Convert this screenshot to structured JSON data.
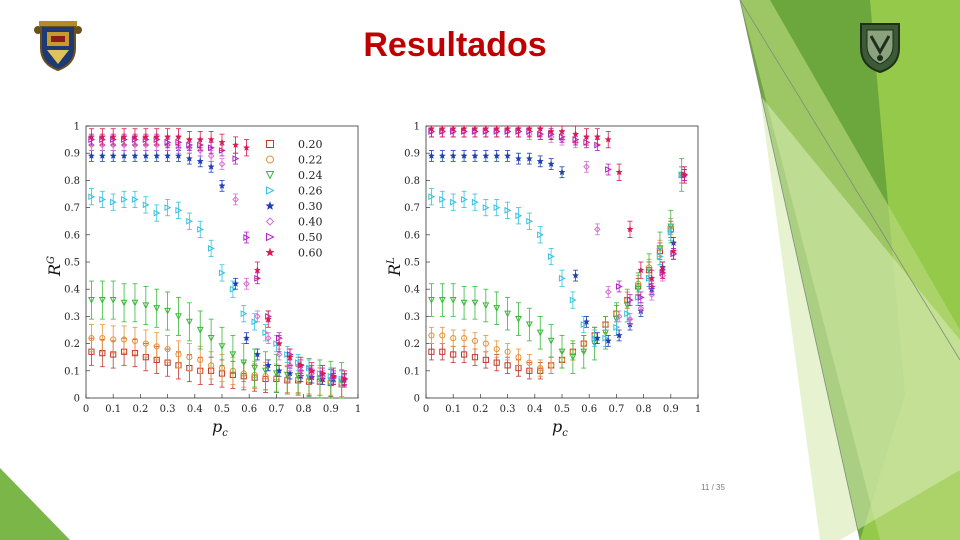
{
  "slide": {
    "title": "Resultados",
    "page_number": "11 / 35",
    "accent_color": "#7ab648",
    "title_color": "#c00000",
    "left_logo_icon": "university-crest-icon",
    "right_logo_icon": "unam-crest-icon"
  },
  "chart_data": [
    {
      "type": "scatter",
      "ylabel": "R",
      "ylabel_sup": "G",
      "xlabel": "p",
      "xlabel_sub": "c",
      "xlim": [
        0,
        1
      ],
      "ylim": [
        0,
        1
      ],
      "xticks": [
        "0",
        "0.1",
        "0.2",
        "0.3",
        "0.4",
        "0.5",
        "0.6",
        "0.7",
        "0.8",
        "0.9",
        "1"
      ],
      "yticks": [
        "0",
        "0.1",
        "0.2",
        "0.3",
        "0.4",
        "0.5",
        "0.6",
        "0.7",
        "0.8",
        "0.9",
        "1"
      ],
      "legend_position": "top-right",
      "series": [
        {
          "name": "0.20",
          "color": "#c0392b",
          "marker": "square",
          "error": 0.05,
          "x": [
            0.02,
            0.06,
            0.1,
            0.14,
            0.18,
            0.22,
            0.26,
            0.3,
            0.34,
            0.38,
            0.42,
            0.46,
            0.5,
            0.54,
            0.58,
            0.62,
            0.66,
            0.7,
            0.74,
            0.78,
            0.82,
            0.86,
            0.9,
            0.94
          ],
          "y": [
            0.17,
            0.165,
            0.16,
            0.17,
            0.165,
            0.15,
            0.14,
            0.13,
            0.12,
            0.11,
            0.1,
            0.1,
            0.09,
            0.085,
            0.08,
            0.075,
            0.07,
            0.07,
            0.065,
            0.065,
            0.06,
            0.06,
            0.055,
            0.05
          ]
        },
        {
          "name": "0.22",
          "color": "#e69138",
          "marker": "circle",
          "error": 0.05,
          "x": [
            0.02,
            0.06,
            0.1,
            0.14,
            0.18,
            0.22,
            0.26,
            0.3,
            0.34,
            0.38,
            0.42,
            0.46,
            0.5,
            0.54,
            0.58,
            0.62,
            0.66,
            0.7,
            0.74,
            0.78,
            0.82,
            0.86,
            0.9,
            0.94
          ],
          "y": [
            0.22,
            0.22,
            0.215,
            0.215,
            0.21,
            0.2,
            0.19,
            0.18,
            0.16,
            0.15,
            0.14,
            0.12,
            0.11,
            0.1,
            0.09,
            0.085,
            0.08,
            0.075,
            0.07,
            0.07,
            0.065,
            0.06,
            0.06,
            0.055
          ]
        },
        {
          "name": "0.24",
          "color": "#38b83a",
          "marker": "triangle-down",
          "error": 0.07,
          "x": [
            0.02,
            0.06,
            0.1,
            0.14,
            0.18,
            0.22,
            0.26,
            0.3,
            0.34,
            0.38,
            0.42,
            0.46,
            0.5,
            0.54,
            0.58,
            0.62,
            0.66,
            0.7,
            0.74,
            0.78,
            0.82,
            0.86,
            0.9,
            0.94
          ],
          "y": [
            0.36,
            0.36,
            0.36,
            0.35,
            0.35,
            0.34,
            0.33,
            0.32,
            0.3,
            0.28,
            0.25,
            0.22,
            0.19,
            0.16,
            0.13,
            0.11,
            0.1,
            0.09,
            0.085,
            0.08,
            0.075,
            0.07,
            0.065,
            0.06
          ]
        },
        {
          "name": "0.26",
          "color": "#35c2e0",
          "marker": "triangle-right",
          "error": 0.03,
          "x": [
            0.02,
            0.06,
            0.1,
            0.14,
            0.18,
            0.22,
            0.26,
            0.3,
            0.34,
            0.38,
            0.42,
            0.46,
            0.5,
            0.54,
            0.58,
            0.62,
            0.66,
            0.7,
            0.74,
            0.78,
            0.82,
            0.86,
            0.9,
            0.94
          ],
          "y": [
            0.74,
            0.73,
            0.72,
            0.73,
            0.73,
            0.71,
            0.68,
            0.7,
            0.69,
            0.65,
            0.62,
            0.55,
            0.46,
            0.4,
            0.31,
            0.28,
            0.24,
            0.2,
            0.16,
            0.13,
            0.11,
            0.09,
            0.08,
            0.07
          ]
        },
        {
          "name": "0.30",
          "color": "#1f3fb5",
          "marker": "star",
          "error": 0.02,
          "x": [
            0.02,
            0.06,
            0.1,
            0.14,
            0.18,
            0.22,
            0.26,
            0.3,
            0.34,
            0.38,
            0.42,
            0.46,
            0.5,
            0.55,
            0.59,
            0.63,
            0.67,
            0.71,
            0.75,
            0.79,
            0.83,
            0.87,
            0.91,
            0.95
          ],
          "y": [
            0.89,
            0.89,
            0.89,
            0.89,
            0.89,
            0.89,
            0.89,
            0.89,
            0.89,
            0.88,
            0.87,
            0.85,
            0.78,
            0.42,
            0.22,
            0.16,
            0.12,
            0.1,
            0.09,
            0.08,
            0.075,
            0.07,
            0.07,
            0.065
          ]
        },
        {
          "name": "0.40",
          "color": "#d66fd1",
          "marker": "diamond",
          "error": 0.02,
          "x": [
            0.02,
            0.06,
            0.1,
            0.14,
            0.18,
            0.22,
            0.26,
            0.3,
            0.34,
            0.38,
            0.42,
            0.46,
            0.5,
            0.55,
            0.59,
            0.63,
            0.67,
            0.71,
            0.75,
            0.79,
            0.83,
            0.87,
            0.91,
            0.95
          ],
          "y": [
            0.93,
            0.93,
            0.93,
            0.93,
            0.93,
            0.93,
            0.93,
            0.93,
            0.92,
            0.92,
            0.91,
            0.89,
            0.86,
            0.73,
            0.42,
            0.3,
            0.22,
            0.16,
            0.12,
            0.1,
            0.09,
            0.08,
            0.075,
            0.07
          ]
        },
        {
          "name": "0.50",
          "color": "#b11ec9",
          "marker": "triangle-right",
          "error": 0.02,
          "x": [
            0.02,
            0.06,
            0.1,
            0.14,
            0.18,
            0.22,
            0.26,
            0.3,
            0.34,
            0.38,
            0.42,
            0.46,
            0.5,
            0.55,
            0.59,
            0.63,
            0.67,
            0.71,
            0.75,
            0.79,
            0.83,
            0.87,
            0.91,
            0.95
          ],
          "y": [
            0.95,
            0.95,
            0.95,
            0.95,
            0.95,
            0.95,
            0.95,
            0.94,
            0.94,
            0.93,
            0.93,
            0.92,
            0.91,
            0.88,
            0.59,
            0.44,
            0.3,
            0.22,
            0.16,
            0.12,
            0.1,
            0.09,
            0.08,
            0.07
          ]
        },
        {
          "name": "0.60",
          "color": "#d81b50",
          "marker": "star",
          "error": 0.03,
          "x": [
            0.02,
            0.06,
            0.1,
            0.14,
            0.18,
            0.22,
            0.26,
            0.3,
            0.34,
            0.38,
            0.42,
            0.46,
            0.5,
            0.55,
            0.59,
            0.63,
            0.67,
            0.71,
            0.75,
            0.79,
            0.83,
            0.87,
            0.91,
            0.95
          ],
          "y": [
            0.96,
            0.96,
            0.96,
            0.96,
            0.96,
            0.96,
            0.96,
            0.96,
            0.96,
            0.95,
            0.95,
            0.95,
            0.94,
            0.93,
            0.92,
            0.47,
            0.29,
            0.2,
            0.15,
            0.12,
            0.1,
            0.09,
            0.08,
            0.07
          ]
        }
      ]
    },
    {
      "type": "scatter",
      "ylabel": "R",
      "ylabel_sup": "L",
      "xlabel": "p",
      "xlabel_sub": "c",
      "xlim": [
        0,
        1
      ],
      "ylim": [
        0,
        1
      ],
      "xticks": [
        "0",
        "0.1",
        "0.2",
        "0.3",
        "0.4",
        "0.5",
        "0.6",
        "0.7",
        "0.8",
        "0.9",
        "1"
      ],
      "yticks": [
        "0",
        "0.1",
        "0.2",
        "0.3",
        "0.4",
        "0.5",
        "0.6",
        "0.7",
        "0.8",
        "0.9",
        "1"
      ],
      "series": [
        {
          "name": "0.20",
          "color": "#c0392b",
          "marker": "square",
          "error": 0.03,
          "x": [
            0.02,
            0.06,
            0.1,
            0.14,
            0.18,
            0.22,
            0.26,
            0.3,
            0.34,
            0.38,
            0.42,
            0.46,
            0.5,
            0.54,
            0.58,
            0.62,
            0.66,
            0.7,
            0.74,
            0.78,
            0.82,
            0.86,
            0.9,
            0.94
          ],
          "y": [
            0.17,
            0.17,
            0.16,
            0.16,
            0.15,
            0.14,
            0.13,
            0.12,
            0.11,
            0.1,
            0.1,
            0.12,
            0.14,
            0.17,
            0.2,
            0.23,
            0.27,
            0.31,
            0.36,
            0.41,
            0.47,
            0.54,
            0.62,
            0.82
          ]
        },
        {
          "name": "0.22",
          "color": "#e69138",
          "marker": "circle",
          "error": 0.03,
          "x": [
            0.02,
            0.06,
            0.1,
            0.14,
            0.18,
            0.22,
            0.26,
            0.3,
            0.34,
            0.38,
            0.42,
            0.46,
            0.5,
            0.54,
            0.58,
            0.62,
            0.66,
            0.7,
            0.74,
            0.78,
            0.82,
            0.86,
            0.9,
            0.94
          ],
          "y": [
            0.23,
            0.23,
            0.22,
            0.22,
            0.21,
            0.2,
            0.18,
            0.17,
            0.15,
            0.13,
            0.11,
            0.12,
            0.14,
            0.17,
            0.2,
            0.23,
            0.27,
            0.31,
            0.36,
            0.42,
            0.48,
            0.55,
            0.63,
            0.82
          ]
        },
        {
          "name": "0.24",
          "color": "#38b83a",
          "marker": "triangle-down",
          "error": 0.06,
          "x": [
            0.02,
            0.06,
            0.1,
            0.14,
            0.18,
            0.22,
            0.26,
            0.3,
            0.34,
            0.38,
            0.42,
            0.46,
            0.5,
            0.54,
            0.58,
            0.62,
            0.66,
            0.7,
            0.74,
            0.78,
            0.82,
            0.86,
            0.9,
            0.94
          ],
          "y": [
            0.36,
            0.36,
            0.36,
            0.35,
            0.35,
            0.34,
            0.33,
            0.31,
            0.29,
            0.27,
            0.24,
            0.21,
            0.17,
            0.15,
            0.17,
            0.2,
            0.24,
            0.29,
            0.34,
            0.4,
            0.47,
            0.55,
            0.63,
            0.82
          ]
        },
        {
          "name": "0.26",
          "color": "#35c2e0",
          "marker": "triangle-right",
          "error": 0.03,
          "x": [
            0.02,
            0.06,
            0.1,
            0.14,
            0.18,
            0.22,
            0.26,
            0.3,
            0.34,
            0.38,
            0.42,
            0.46,
            0.5,
            0.54,
            0.58,
            0.62,
            0.66,
            0.7,
            0.74,
            0.78,
            0.82,
            0.86,
            0.9,
            0.94
          ],
          "y": [
            0.74,
            0.73,
            0.72,
            0.73,
            0.72,
            0.7,
            0.7,
            0.69,
            0.67,
            0.65,
            0.6,
            0.52,
            0.44,
            0.36,
            0.27,
            0.22,
            0.22,
            0.26,
            0.31,
            0.37,
            0.44,
            0.52,
            0.61,
            0.82
          ]
        },
        {
          "name": "0.30",
          "color": "#1f3fb5",
          "marker": "star",
          "error": 0.02,
          "x": [
            0.02,
            0.06,
            0.1,
            0.14,
            0.18,
            0.22,
            0.26,
            0.3,
            0.34,
            0.38,
            0.42,
            0.46,
            0.5,
            0.55,
            0.59,
            0.63,
            0.67,
            0.71,
            0.75,
            0.79,
            0.83,
            0.87,
            0.91,
            0.95
          ],
          "y": [
            0.89,
            0.89,
            0.89,
            0.89,
            0.89,
            0.89,
            0.89,
            0.89,
            0.88,
            0.88,
            0.87,
            0.86,
            0.83,
            0.45,
            0.28,
            0.22,
            0.21,
            0.23,
            0.27,
            0.32,
            0.4,
            0.48,
            0.57,
            0.82
          ]
        },
        {
          "name": "0.40",
          "color": "#d66fd1",
          "marker": "diamond",
          "error": 0.02,
          "x": [
            0.02,
            0.06,
            0.1,
            0.14,
            0.18,
            0.22,
            0.26,
            0.3,
            0.34,
            0.38,
            0.42,
            0.46,
            0.5,
            0.55,
            0.59,
            0.63,
            0.67,
            0.71,
            0.75,
            0.79,
            0.83,
            0.87,
            0.91,
            0.95
          ],
          "y": [
            0.98,
            0.98,
            0.98,
            0.98,
            0.98,
            0.98,
            0.98,
            0.98,
            0.98,
            0.97,
            0.97,
            0.96,
            0.95,
            0.94,
            0.85,
            0.62,
            0.39,
            0.3,
            0.29,
            0.33,
            0.38,
            0.45,
            0.53,
            0.82
          ]
        },
        {
          "name": "0.50",
          "color": "#b11ec9",
          "marker": "triangle-right",
          "error": 0.02,
          "x": [
            0.02,
            0.06,
            0.1,
            0.14,
            0.18,
            0.22,
            0.26,
            0.3,
            0.34,
            0.38,
            0.42,
            0.46,
            0.5,
            0.55,
            0.59,
            0.63,
            0.67,
            0.71,
            0.75,
            0.79,
            0.83,
            0.87,
            0.91,
            0.95
          ],
          "y": [
            0.98,
            0.98,
            0.98,
            0.98,
            0.98,
            0.98,
            0.98,
            0.98,
            0.98,
            0.98,
            0.97,
            0.97,
            0.96,
            0.95,
            0.94,
            0.93,
            0.84,
            0.41,
            0.36,
            0.37,
            0.41,
            0.46,
            0.53,
            0.82
          ]
        },
        {
          "name": "0.60",
          "color": "#d81b50",
          "marker": "star",
          "error": 0.03,
          "x": [
            0.02,
            0.06,
            0.1,
            0.14,
            0.18,
            0.22,
            0.26,
            0.3,
            0.34,
            0.38,
            0.42,
            0.46,
            0.5,
            0.55,
            0.59,
            0.63,
            0.67,
            0.71,
            0.75,
            0.79,
            0.83,
            0.87,
            0.91,
            0.95
          ],
          "y": [
            0.99,
            0.99,
            0.99,
            0.99,
            0.99,
            0.99,
            0.99,
            0.99,
            0.99,
            0.99,
            0.99,
            0.98,
            0.98,
            0.97,
            0.96,
            0.96,
            0.95,
            0.83,
            0.62,
            0.47,
            0.44,
            0.47,
            0.54,
            0.82
          ]
        }
      ]
    }
  ]
}
